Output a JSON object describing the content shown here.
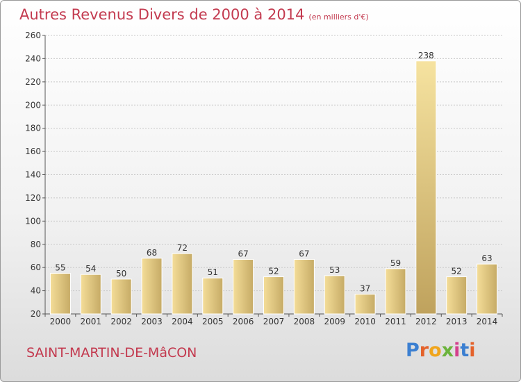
{
  "title": "Autres Revenus Divers de 2000 à 2014",
  "title_unit": "(en milliers d'€)",
  "commune": "SAINT-MARTIN-DE-MâCON",
  "logo_text": "Proxiti",
  "logo_letters": [
    "P",
    "r",
    "o",
    "x",
    "i",
    "t",
    "i"
  ],
  "colors": {
    "title": "#c33a4f",
    "bar_light": "#f5e3a2",
    "bar_dark": "#c7ad68"
  },
  "chart_data": {
    "type": "bar",
    "categories": [
      "2000",
      "2001",
      "2002",
      "2003",
      "2004",
      "2005",
      "2006",
      "2007",
      "2008",
      "2009",
      "2010",
      "2011",
      "2012",
      "2013",
      "2014"
    ],
    "values": [
      55,
      54,
      50,
      68,
      72,
      51,
      67,
      52,
      67,
      53,
      37,
      59,
      238,
      52,
      63
    ],
    "ylim": [
      20,
      260
    ],
    "yticks": [
      20,
      40,
      60,
      80,
      100,
      120,
      140,
      160,
      180,
      200,
      220,
      240,
      260
    ],
    "grid": true,
    "xlabel": "",
    "ylabel": ""
  }
}
